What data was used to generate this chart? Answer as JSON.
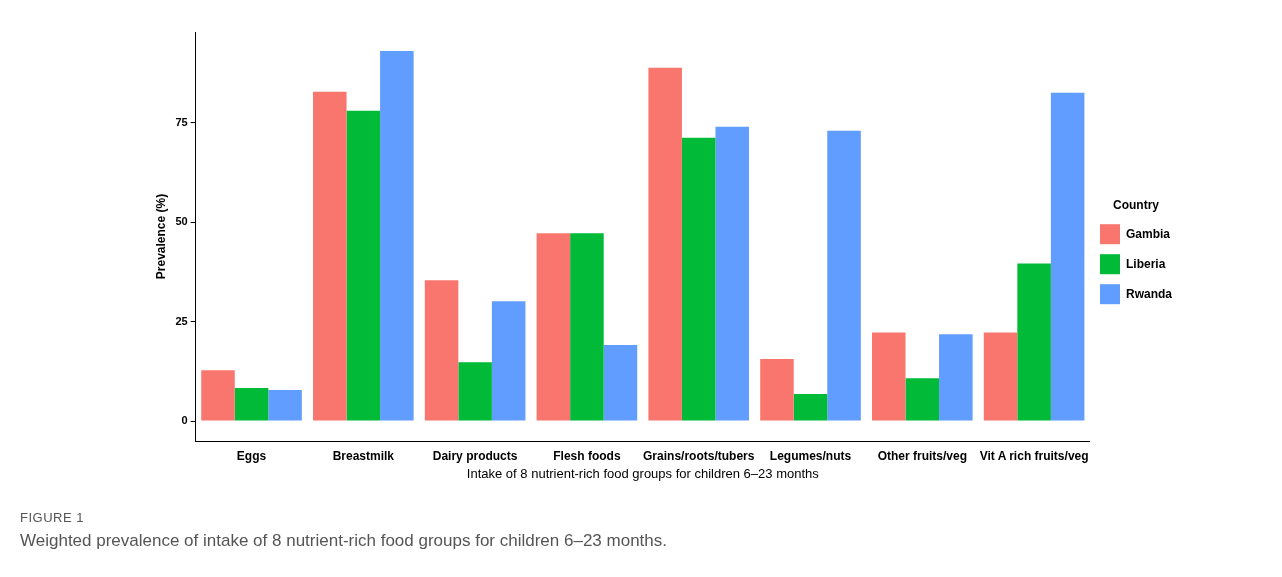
{
  "chart_data": {
    "type": "bar",
    "xlabel": "Intake of 8 nutrient-rich food groups for children 6–23 months",
    "ylabel": "Prevalence (%)",
    "legend_title": "Country",
    "legend": "right",
    "grid": false,
    "categories": [
      "Eggs",
      "Breastmilk",
      "Dairy products",
      "Flesh foods",
      "Grains/roots/tubers",
      "Legumes/nuts",
      "Other fruits/veg",
      "Vit A rich fruits/veg"
    ],
    "series": [
      {
        "name": "Gambia",
        "color": "#f8766d",
        "values": [
          12.8,
          82.8,
          35.4,
          47.2,
          88.8,
          15.6,
          22.3,
          22.3
        ]
      },
      {
        "name": "Liberia",
        "color": "#00ba38",
        "values": [
          8.3,
          78,
          14.8,
          47.2,
          71.2,
          6.8,
          10.8,
          39.6
        ]
      },
      {
        "name": "Rwanda",
        "color": "#619cff",
        "values": [
          7.8,
          93,
          30.1,
          19.1,
          74,
          73,
          21.8,
          82.5
        ]
      }
    ],
    "ylim": [
      -5,
      97.8
    ],
    "yticks": [
      0,
      25,
      50,
      75
    ],
    "annotations": [
      "FIGURE 1",
      "Weighted prevalence of intake of 8 nutrient-rich food groups for children 6–23 months."
    ]
  }
}
